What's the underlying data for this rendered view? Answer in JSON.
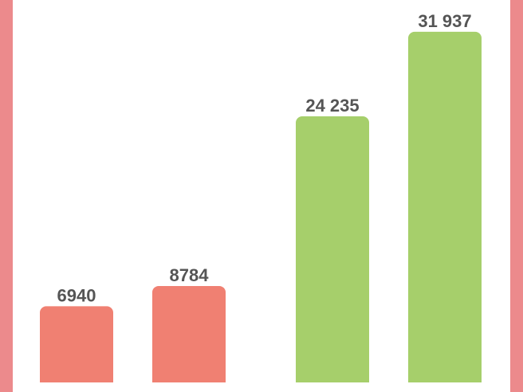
{
  "chart_data": {
    "type": "bar",
    "values": [
      6940,
      8784,
      24235,
      31937
    ],
    "value_labels": [
      "6940",
      "8784",
      "24 235",
      "31 937"
    ],
    "colors": [
      "#f08072",
      "#f08072",
      "#a6cf6b",
      "#a6cf6b"
    ],
    "ylim": [
      0,
      32000
    ]
  }
}
